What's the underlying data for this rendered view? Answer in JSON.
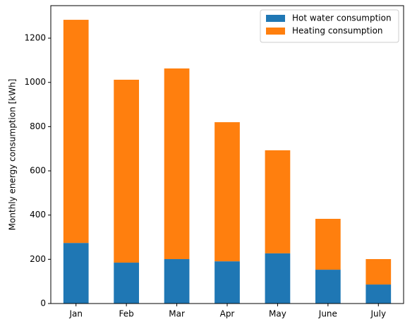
{
  "chart_data": {
    "type": "stacked_bar",
    "y_label": "Monthly energy consumption [kWh]",
    "categories": [
      "Jan",
      "Feb",
      "Mar",
      "Apr",
      "May",
      "June",
      "July"
    ],
    "series": [
      {
        "name": "Hot water consumption",
        "color": "#1f77b4",
        "values": [
          274,
          185,
          201,
          191,
          227,
          153,
          86
        ]
      },
      {
        "name": "Heating consumption",
        "color": "#ff7f0e",
        "values": [
          1009,
          827,
          862,
          629,
          466,
          230,
          115
        ]
      }
    ],
    "ylim": [
      0,
      1347
    ],
    "yticks": [
      0,
      200,
      400,
      600,
      800,
      1000,
      1200
    ],
    "legend": "upper right"
  }
}
